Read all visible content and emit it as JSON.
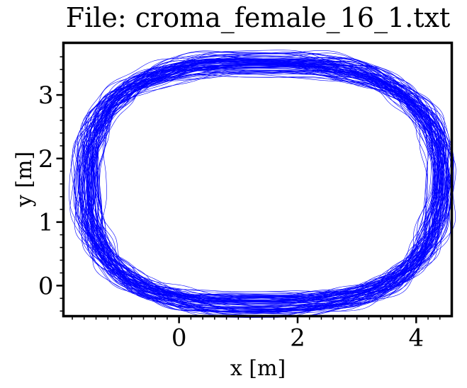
{
  "chart_data": {
    "type": "line",
    "title": "File: croma_female_16_1.txt",
    "xlabel": "x [m]",
    "ylabel": "y [m]",
    "xlim": [
      -1.95,
      4.6
    ],
    "ylim": [
      -0.48,
      3.82
    ],
    "xticks": [
      0,
      2,
      4
    ],
    "xtick_labels": [
      "0",
      "2",
      "4"
    ],
    "yticks": [
      0,
      1,
      2,
      3
    ],
    "ytick_labels": [
      "0",
      "1",
      "2",
      "3"
    ],
    "grid": false,
    "legend": "none",
    "series_color": "#0000ff",
    "trajectory": {
      "description_points": "closed loop path traced repeatedly (many laps)",
      "center": [
        1.4,
        1.6
      ],
      "x_range": [
        -1.6,
        4.25
      ],
      "y_range": [
        -0.25,
        3.55
      ],
      "laps": 90
    }
  }
}
